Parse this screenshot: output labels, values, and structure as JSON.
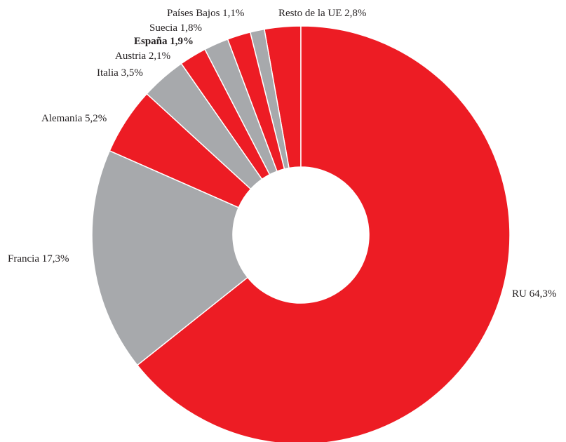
{
  "chart_data": {
    "type": "pie",
    "subtype": "donut",
    "title": "",
    "slices": [
      {
        "name": "Resto de la UE",
        "value": 2.8,
        "label": "Resto de la UE 2,8%",
        "color": "#ed1c24",
        "bold": false
      },
      {
        "name": "Países Bajos",
        "value": 1.1,
        "label": "Países Bajos 1,1%",
        "color": "#a7a9ac",
        "bold": false
      },
      {
        "name": "Suecia",
        "value": 1.8,
        "label": "Suecia 1,8%",
        "color": "#ed1c24",
        "bold": false
      },
      {
        "name": "España",
        "value": 1.9,
        "label": "España 1,9%",
        "color": "#a7a9ac",
        "bold": true
      },
      {
        "name": "Austria",
        "value": 2.1,
        "label": "Austria 2,1%",
        "color": "#ed1c24",
        "bold": false
      },
      {
        "name": "Italia",
        "value": 3.5,
        "label": "Italia 3,5%",
        "color": "#a7a9ac",
        "bold": false
      },
      {
        "name": "Alemania",
        "value": 5.2,
        "label": "Alemania 5,2%",
        "color": "#ed1c24",
        "bold": false
      },
      {
        "name": "Francia",
        "value": 17.3,
        "label": "Francia 17,3%",
        "color": "#a7a9ac",
        "bold": false
      },
      {
        "name": "RU",
        "value": 64.3,
        "label": "RU 64,3%",
        "color": "#ed1c24",
        "bold": false
      }
    ],
    "direction": "counterclockwise",
    "start": "top"
  }
}
